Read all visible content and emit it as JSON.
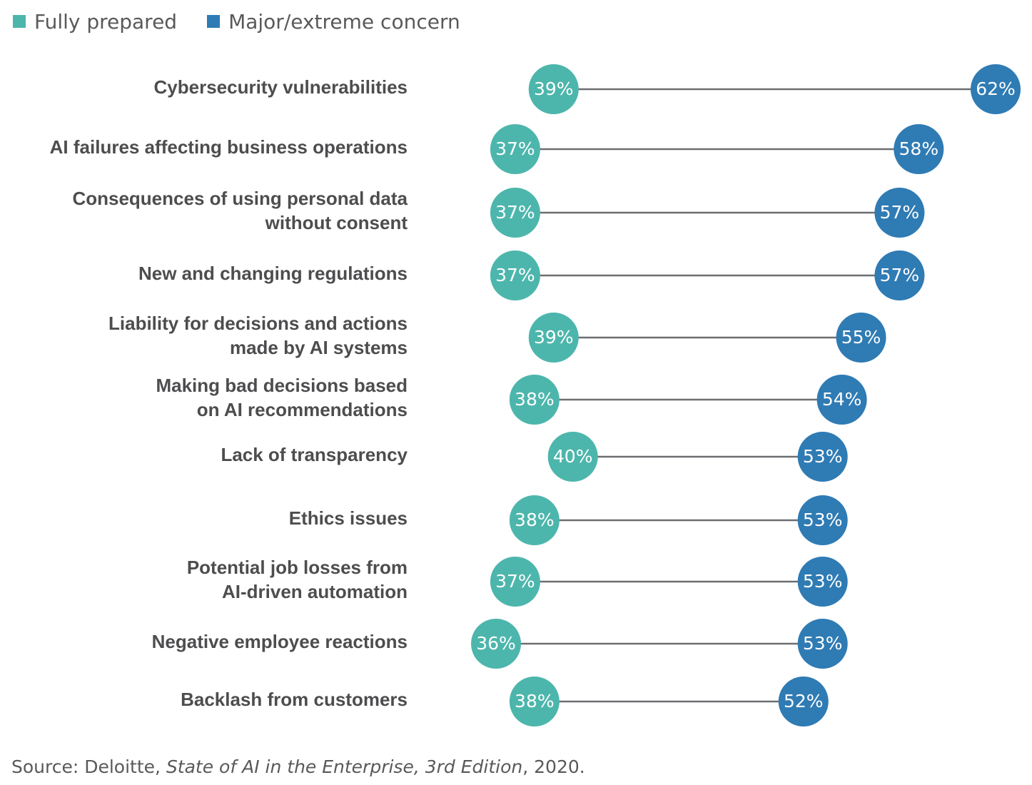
{
  "legend": {
    "fully_prepared": "Fully prepared",
    "major_concern": "Major/extreme concern"
  },
  "colors": {
    "prepared": "#4db6ac",
    "concern": "#2f7bb4",
    "connector": "#6d6e71",
    "label": "#4d4d4f"
  },
  "chart_data": {
    "type": "dumbbell",
    "categories": [
      "Cybersecurity vulnerabilities",
      "AI failures affecting business operations",
      "Consequences of using personal data\nwithout consent",
      "New and changing regulations",
      "Liability for decisions and actions\nmade by AI systems",
      "Making bad decisions based\non AI recommendations",
      "Lack of transparency",
      "Ethics issues",
      "Potential job losses from\nAI-driven automation",
      "Negative employee reactions",
      "Backlash from customers"
    ],
    "series": [
      {
        "name": "Fully prepared",
        "values": [
          39,
          37,
          37,
          37,
          39,
          38,
          40,
          38,
          37,
          36,
          38
        ]
      },
      {
        "name": "Major/extreme concern",
        "values": [
          62,
          58,
          57,
          57,
          55,
          54,
          53,
          53,
          53,
          53,
          52
        ]
      }
    ],
    "value_labels": {
      "prepared": [
        "39%",
        "37%",
        "37%",
        "37%",
        "39%",
        "38%",
        "40%",
        "38%",
        "37%",
        "36%",
        "38%"
      ],
      "concern": [
        "62%",
        "58%",
        "57%",
        "57%",
        "55%",
        "54%",
        "53%",
        "53%",
        "53%",
        "53%",
        "52%"
      ]
    },
    "xlim": [
      36,
      62
    ]
  },
  "source": {
    "prefix": "Source: Deloitte, ",
    "title": "State of AI in the Enterprise, 3rd Edition",
    "suffix": ", 2020."
  }
}
